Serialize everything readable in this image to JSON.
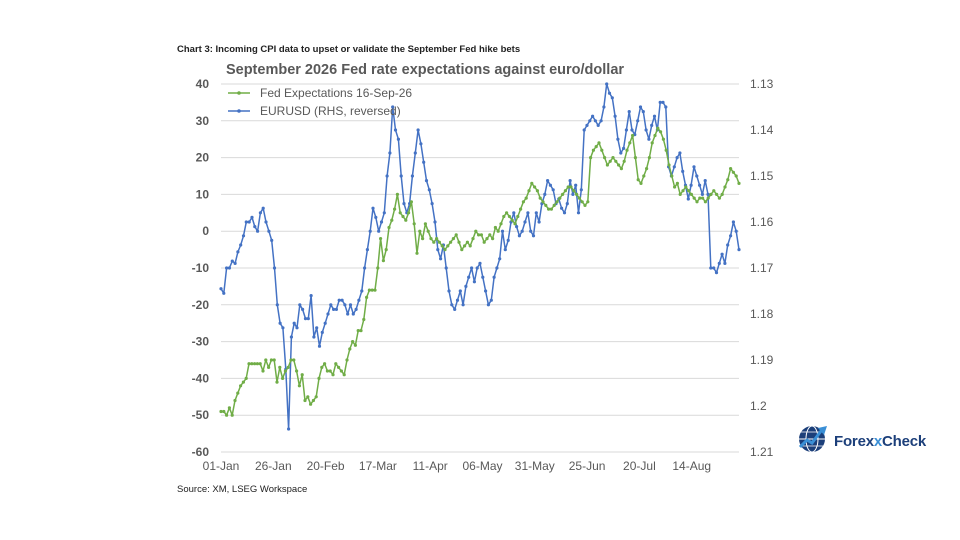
{
  "caption": "Chart 3: Incoming CPI data to upset or validate the September Fed hike bets",
  "source": "Source: XM, LSEG Workspace",
  "brand": {
    "name_pre": "Forex",
    "name_x": "x",
    "name_post": "Check",
    "icon": "globe-chart-logo-icon"
  },
  "colors": {
    "fed": "#70ad47",
    "eur": "#4472c4",
    "grid": "#d9d9d9",
    "text": "#595959"
  },
  "chart_data": {
    "type": "line",
    "title": "September 2026 Fed rate expectations against euro/dollar",
    "x_tick_labels": [
      "01-Jan",
      "26-Jan",
      "20-Feb",
      "17-Mar",
      "11-Apr",
      "06-May",
      "31-May",
      "25-Jun",
      "20-Jul",
      "14-Aug"
    ],
    "y_left": {
      "ticks": [
        "40",
        "30",
        "20",
        "10",
        "0",
        "-10",
        "-20",
        "-30",
        "-40",
        "-50",
        "-60"
      ],
      "range": [
        -60,
        40
      ]
    },
    "y_right": {
      "ticks": [
        "1.13",
        "1.14",
        "1.15",
        "1.16",
        "1.17",
        "1.18",
        "1.19",
        "1.2",
        "1.21"
      ],
      "range": [
        1.21,
        1.13
      ],
      "reversed": true
    },
    "legend": [
      {
        "name": "Fed Expectations 16-Sep-26",
        "color": "#70ad47"
      },
      {
        "name": "EURUSD (RHS, reversed)",
        "color": "#4472c4"
      }
    ],
    "series": [
      {
        "name": "Fed Expectations 16-Sep-26",
        "axis": "left",
        "values": [
          -49,
          -49,
          -50,
          -48,
          -50,
          -46,
          -44,
          -42,
          -41,
          -40,
          -36,
          -36,
          -36,
          -36,
          -36,
          -38,
          -35,
          -37,
          -35,
          -35,
          -41,
          -37,
          -40,
          -38,
          -37,
          -35,
          -35,
          -38,
          -42,
          -39,
          -46,
          -45,
          -47,
          -46,
          -45,
          -40,
          -37,
          -36,
          -38,
          -38,
          -39,
          -36,
          -37,
          -38,
          -39,
          -35,
          -32,
          -30,
          -31,
          -27,
          -27,
          -24,
          -18,
          -16,
          -16,
          -16,
          -10,
          -2,
          -8,
          -5,
          1,
          3,
          6,
          10,
          5,
          4,
          3,
          5,
          8,
          2,
          -6,
          0,
          -2,
          2,
          0,
          -2,
          -3,
          -2,
          -3,
          -4,
          -5,
          -4,
          -3,
          -2,
          -1,
          -3,
          -5,
          -4,
          -3,
          -4,
          -2,
          0,
          -1,
          -1,
          -3,
          -2,
          -1,
          -2,
          1,
          0,
          2,
          4,
          5,
          4,
          3,
          2,
          4,
          6,
          8,
          9,
          11,
          13,
          12,
          11,
          9,
          8,
          7,
          6,
          6,
          7,
          8,
          9,
          10,
          11,
          12,
          12,
          11,
          10,
          9,
          8,
          7,
          8,
          20,
          22,
          23,
          24,
          22,
          20,
          18,
          19,
          20,
          19,
          18,
          17,
          19,
          22,
          24,
          26,
          20,
          14,
          13,
          15,
          17,
          20,
          24,
          26,
          28,
          27,
          25,
          22,
          18,
          15,
          12,
          13,
          10,
          11,
          12,
          11,
          10,
          9,
          8,
          9,
          9,
          8,
          9,
          10,
          11,
          10,
          9,
          10,
          12,
          14,
          17,
          16,
          15,
          13
        ]
      },
      {
        "name": "EURUSD (RHS, reversed)",
        "axis": "right",
        "values": [
          1.1745,
          1.1755,
          1.17,
          1.17,
          1.1685,
          1.169,
          1.1665,
          1.165,
          1.163,
          1.16,
          1.16,
          1.159,
          1.161,
          1.162,
          1.158,
          1.157,
          1.16,
          1.162,
          1.164,
          1.17,
          1.178,
          1.182,
          1.183,
          1.192,
          1.205,
          1.185,
          1.182,
          1.183,
          1.178,
          1.179,
          1.181,
          1.181,
          1.176,
          1.185,
          1.183,
          1.187,
          1.184,
          1.182,
          1.18,
          1.178,
          1.179,
          1.179,
          1.177,
          1.177,
          1.178,
          1.18,
          1.178,
          1.18,
          1.179,
          1.177,
          1.175,
          1.17,
          1.166,
          1.162,
          1.157,
          1.159,
          1.162,
          1.16,
          1.158,
          1.15,
          1.145,
          1.135,
          1.14,
          1.142,
          1.15,
          1.156,
          1.158,
          1.156,
          1.15,
          1.145,
          1.14,
          1.143,
          1.147,
          1.151,
          1.153,
          1.156,
          1.16,
          1.166,
          1.168,
          1.165,
          1.17,
          1.175,
          1.178,
          1.179,
          1.177,
          1.175,
          1.178,
          1.174,
          1.172,
          1.17,
          1.173,
          1.17,
          1.169,
          1.172,
          1.175,
          1.178,
          1.177,
          1.172,
          1.17,
          1.168,
          1.162,
          1.166,
          1.164,
          1.16,
          1.158,
          1.161,
          1.163,
          1.162,
          1.16,
          1.158,
          1.162,
          1.163,
          1.158,
          1.16,
          1.156,
          1.154,
          1.151,
          1.152,
          1.153,
          1.156,
          1.155,
          1.157,
          1.158,
          1.156,
          1.151,
          1.154,
          1.152,
          1.158,
          1.153,
          1.14,
          1.139,
          1.138,
          1.137,
          1.138,
          1.139,
          1.138,
          1.135,
          1.13,
          1.132,
          1.133,
          1.137,
          1.142,
          1.145,
          1.144,
          1.14,
          1.136,
          1.14,
          1.141,
          1.138,
          1.135,
          1.136,
          1.14,
          1.142,
          1.139,
          1.137,
          1.14,
          1.134,
          1.134,
          1.135,
          1.148,
          1.15,
          1.148,
          1.146,
          1.145,
          1.149,
          1.152,
          1.155,
          1.152,
          1.148,
          1.15,
          1.152,
          1.154,
          1.151,
          1.154,
          1.17,
          1.17,
          1.171,
          1.169,
          1.167,
          1.169,
          1.165,
          1.163,
          1.16,
          1.162,
          1.166
        ]
      }
    ]
  }
}
